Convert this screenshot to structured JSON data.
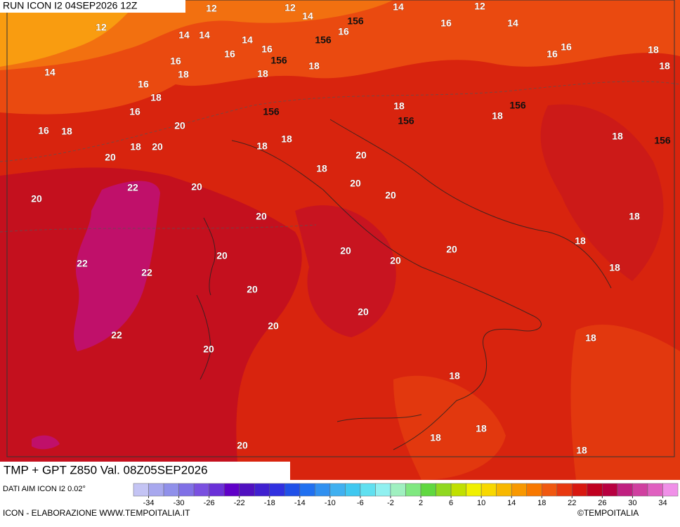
{
  "header": {
    "run": "RUN ICON I2 04SEP2026 12Z"
  },
  "map": {
    "temperature_labels": [
      "12",
      "14",
      "12",
      "12",
      "14",
      "12",
      "14",
      "14",
      "14",
      "16",
      "16",
      "14",
      "16",
      "16",
      "18",
      "18",
      "16",
      "16",
      "16",
      "14",
      "18",
      "18",
      "18",
      "16",
      "18",
      "18",
      "18",
      "16",
      "20",
      "16",
      "18",
      "18",
      "20",
      "18",
      "18",
      "18",
      "20",
      "20",
      "18",
      "22",
      "20",
      "20",
      "20",
      "20",
      "20",
      "18",
      "20",
      "18",
      "22",
      "22",
      "20",
      "20",
      "20",
      "18",
      "20",
      "20",
      "20",
      "22",
      "18",
      "20",
      "18",
      "18",
      "18",
      "20",
      "18"
    ],
    "geopotential_labels": [
      "156",
      "156",
      "156",
      "156",
      "156",
      "156",
      "156"
    ]
  },
  "footer": {
    "product": "TMP + GPT Z850 Val. 08Z05SEP2026",
    "source": "DATI AIM ICON I2 0.02°",
    "credit": "ICON - ELABORAZIONE WWW.TEMPOITALIA.IT",
    "copyright": "©TEMPOITALIA"
  },
  "colorbar": {
    "lim": [
      -36,
      36
    ],
    "ticks": [
      -34,
      -30,
      -26,
      -22,
      -18,
      -14,
      -10,
      -6,
      -2,
      2,
      6,
      10,
      14,
      18,
      22,
      26,
      30,
      34
    ],
    "colors": [
      "#c4c4f4",
      "#a8a8ee",
      "#9090ea",
      "#8070e6",
      "#7a50e0",
      "#6a30d8",
      "#6000c8",
      "#5010c0",
      "#4020d0",
      "#3030e0",
      "#2050e8",
      "#2070f0",
      "#3090f0",
      "#40b0f0",
      "#40c8f0",
      "#60e0f0",
      "#90f0f0",
      "#a0f0c0",
      "#80e880",
      "#60d840",
      "#90d820",
      "#c0e000",
      "#f0f000",
      "#f8d800",
      "#f8b800",
      "#f89800",
      "#f87800",
      "#f05810",
      "#e83810",
      "#d81810",
      "#c00020",
      "#b80040",
      "#c02080",
      "#d040a0",
      "#e060c0",
      "#f090e8"
    ]
  }
}
